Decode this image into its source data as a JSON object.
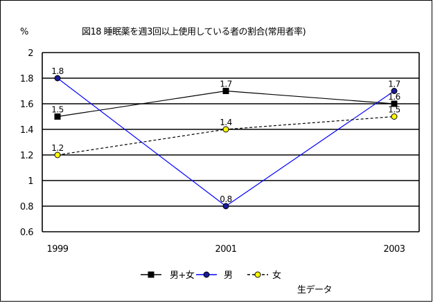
{
  "chart_data": {
    "type": "line",
    "title": "図18 睡眠薬を週3回以上使用している者の割合(常用者率)",
    "ylabel": "%",
    "xlabel": "",
    "categories": [
      "1999",
      "2001",
      "2003"
    ],
    "ylim": [
      0.6,
      2
    ],
    "yticks": [
      "0.6",
      "0.8",
      "1",
      "1.2",
      "1.4",
      "1.6",
      "1.8",
      "2"
    ],
    "grid": true,
    "legend_position": "bottom",
    "note": "生データ",
    "series": [
      {
        "name": "男+女",
        "values": [
          1.5,
          1.7,
          1.6
        ],
        "labels": [
          "1.5",
          "1.7",
          "1.6"
        ],
        "color": "#000000",
        "marker": "square",
        "line": "solid"
      },
      {
        "name": "男",
        "values": [
          1.8,
          0.8,
          1.7
        ],
        "labels": [
          "1.8",
          "0.8",
          "1.7"
        ],
        "color": "#0000ff",
        "marker": "circle",
        "line": "solid"
      },
      {
        "name": "女",
        "values": [
          1.2,
          1.4,
          1.5
        ],
        "labels": [
          "1.2",
          "1.4",
          "1.5"
        ],
        "color": "#000000",
        "marker": "circle-yellow",
        "line": "dashed"
      }
    ]
  }
}
